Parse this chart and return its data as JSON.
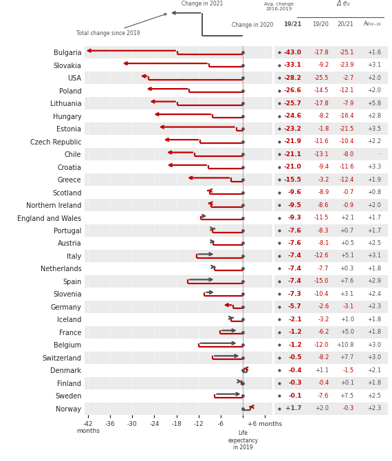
{
  "countries": [
    "Bulgaria",
    "Slovakia",
    "USA",
    "Poland",
    "Lithuania",
    "Hungary",
    "Estonia",
    "Czech Republic",
    "Chile",
    "Croatia",
    "Greece",
    "Scotland",
    "Northern Ireland",
    "England and Wales",
    "Portugal",
    "Austria",
    "Italy",
    "Netherlands",
    "Spain",
    "Slovenia",
    "Germany",
    "Iceland",
    "France",
    "Belgium",
    "Switzerland",
    "Denmark",
    "Finland",
    "Sweden",
    "Norway"
  ],
  "val_1921": [
    -43.0,
    -33.1,
    -28.2,
    -26.6,
    -25.7,
    -24.6,
    -23.2,
    -21.9,
    -21.1,
    -21.0,
    -15.5,
    -9.6,
    -9.5,
    -9.3,
    -7.6,
    -7.6,
    -7.4,
    -7.4,
    -7.4,
    -7.3,
    -5.7,
    -2.1,
    -1.2,
    -1.2,
    -0.5,
    -0.4,
    -0.3,
    -0.1,
    1.7
  ],
  "val_1920": [
    -17.8,
    -9.2,
    -25.5,
    -14.5,
    -17.8,
    -8.2,
    -1.8,
    -11.6,
    -13.1,
    -9.4,
    -3.2,
    -8.9,
    -8.6,
    -11.5,
    -8.3,
    -8.1,
    -12.6,
    -7.7,
    -15.0,
    -10.4,
    -2.6,
    -3.2,
    -6.2,
    -12.0,
    -8.2,
    1.1,
    -0.4,
    -7.6,
    2.0
  ],
  "val_2021": [
    -25.1,
    -23.9,
    -2.7,
    -12.1,
    -7.9,
    -16.4,
    -21.5,
    -10.4,
    -8.0,
    -11.6,
    -12.4,
    -0.7,
    -0.9,
    2.1,
    0.7,
    0.5,
    5.1,
    0.3,
    7.6,
    3.1,
    -3.1,
    1.0,
    5.0,
    10.8,
    7.7,
    -1.5,
    0.1,
    7.5,
    -0.3
  ],
  "val_av1619": [
    1.6,
    3.1,
    2.0,
    2.0,
    5.8,
    2.8,
    3.5,
    2.2,
    null,
    3.3,
    1.9,
    0.8,
    2.0,
    1.7,
    1.7,
    2.5,
    3.1,
    1.8,
    2.9,
    2.4,
    2.3,
    1.8,
    1.8,
    3.0,
    3.0,
    2.1,
    1.8,
    2.5,
    2.3
  ],
  "bg_color": "#ebebeb",
  "red_color": "#c00000",
  "dark_color": "#505050",
  "axis_min": -43,
  "axis_max": 8,
  "axis_ticks": [
    -42,
    -36,
    -30,
    -24,
    -18,
    -12,
    -6,
    0,
    6
  ]
}
